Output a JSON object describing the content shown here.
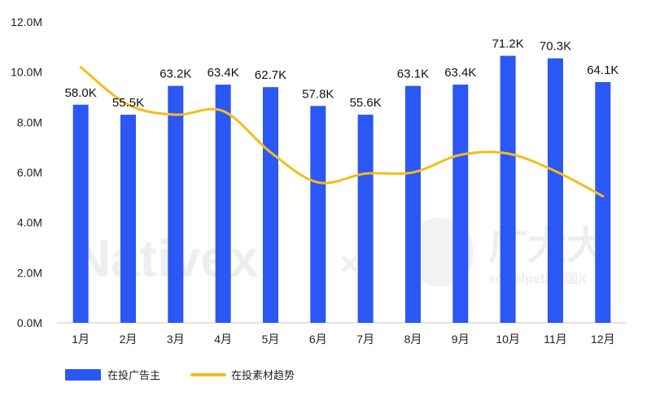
{
  "chart_data": {
    "type": "bar",
    "categories": [
      "1月",
      "2月",
      "3月",
      "4月",
      "5月",
      "6月",
      "7月",
      "8月",
      "9月",
      "10月",
      "11月",
      "12月"
    ],
    "ylim": [
      0,
      12000000
    ],
    "yticks": [
      0,
      2000000,
      4000000,
      6000000,
      8000000,
      10000000,
      12000000
    ],
    "ytick_labels": [
      "0.0M",
      "2.0M",
      "4.0M",
      "6.0M",
      "8.0M",
      "10.0M",
      "12.0M"
    ],
    "grid": false,
    "legend_position": "bottom-left",
    "series": [
      {
        "name": "在投广告主",
        "type": "bar",
        "color": "#2b57f5",
        "values": [
          8700000,
          8300000,
          9450000,
          9500000,
          9400000,
          8650000,
          8300000,
          9450000,
          9500000,
          10650000,
          10550000,
          9600000
        ],
        "data_labels": [
          "58.0K",
          "55.5K",
          "63.2K",
          "63.4K",
          "62.7K",
          "57.8K",
          "55.6K",
          "63.1K",
          "63.4K",
          "71.2K",
          "70.3K",
          "64.1K"
        ]
      },
      {
        "name": "在投素材趋势",
        "type": "line",
        "smooth": true,
        "color": "#f5bd16",
        "values": [
          10200000,
          8700000,
          8300000,
          8450000,
          6800000,
          5600000,
          5950000,
          6000000,
          6700000,
          6750000,
          6050000,
          5050000
        ]
      }
    ]
  },
  "watermark": {
    "left_text": "Nativex",
    "separator": "×",
    "right_text": "广大大",
    "right_subtext": "socialpeta中国X"
  }
}
